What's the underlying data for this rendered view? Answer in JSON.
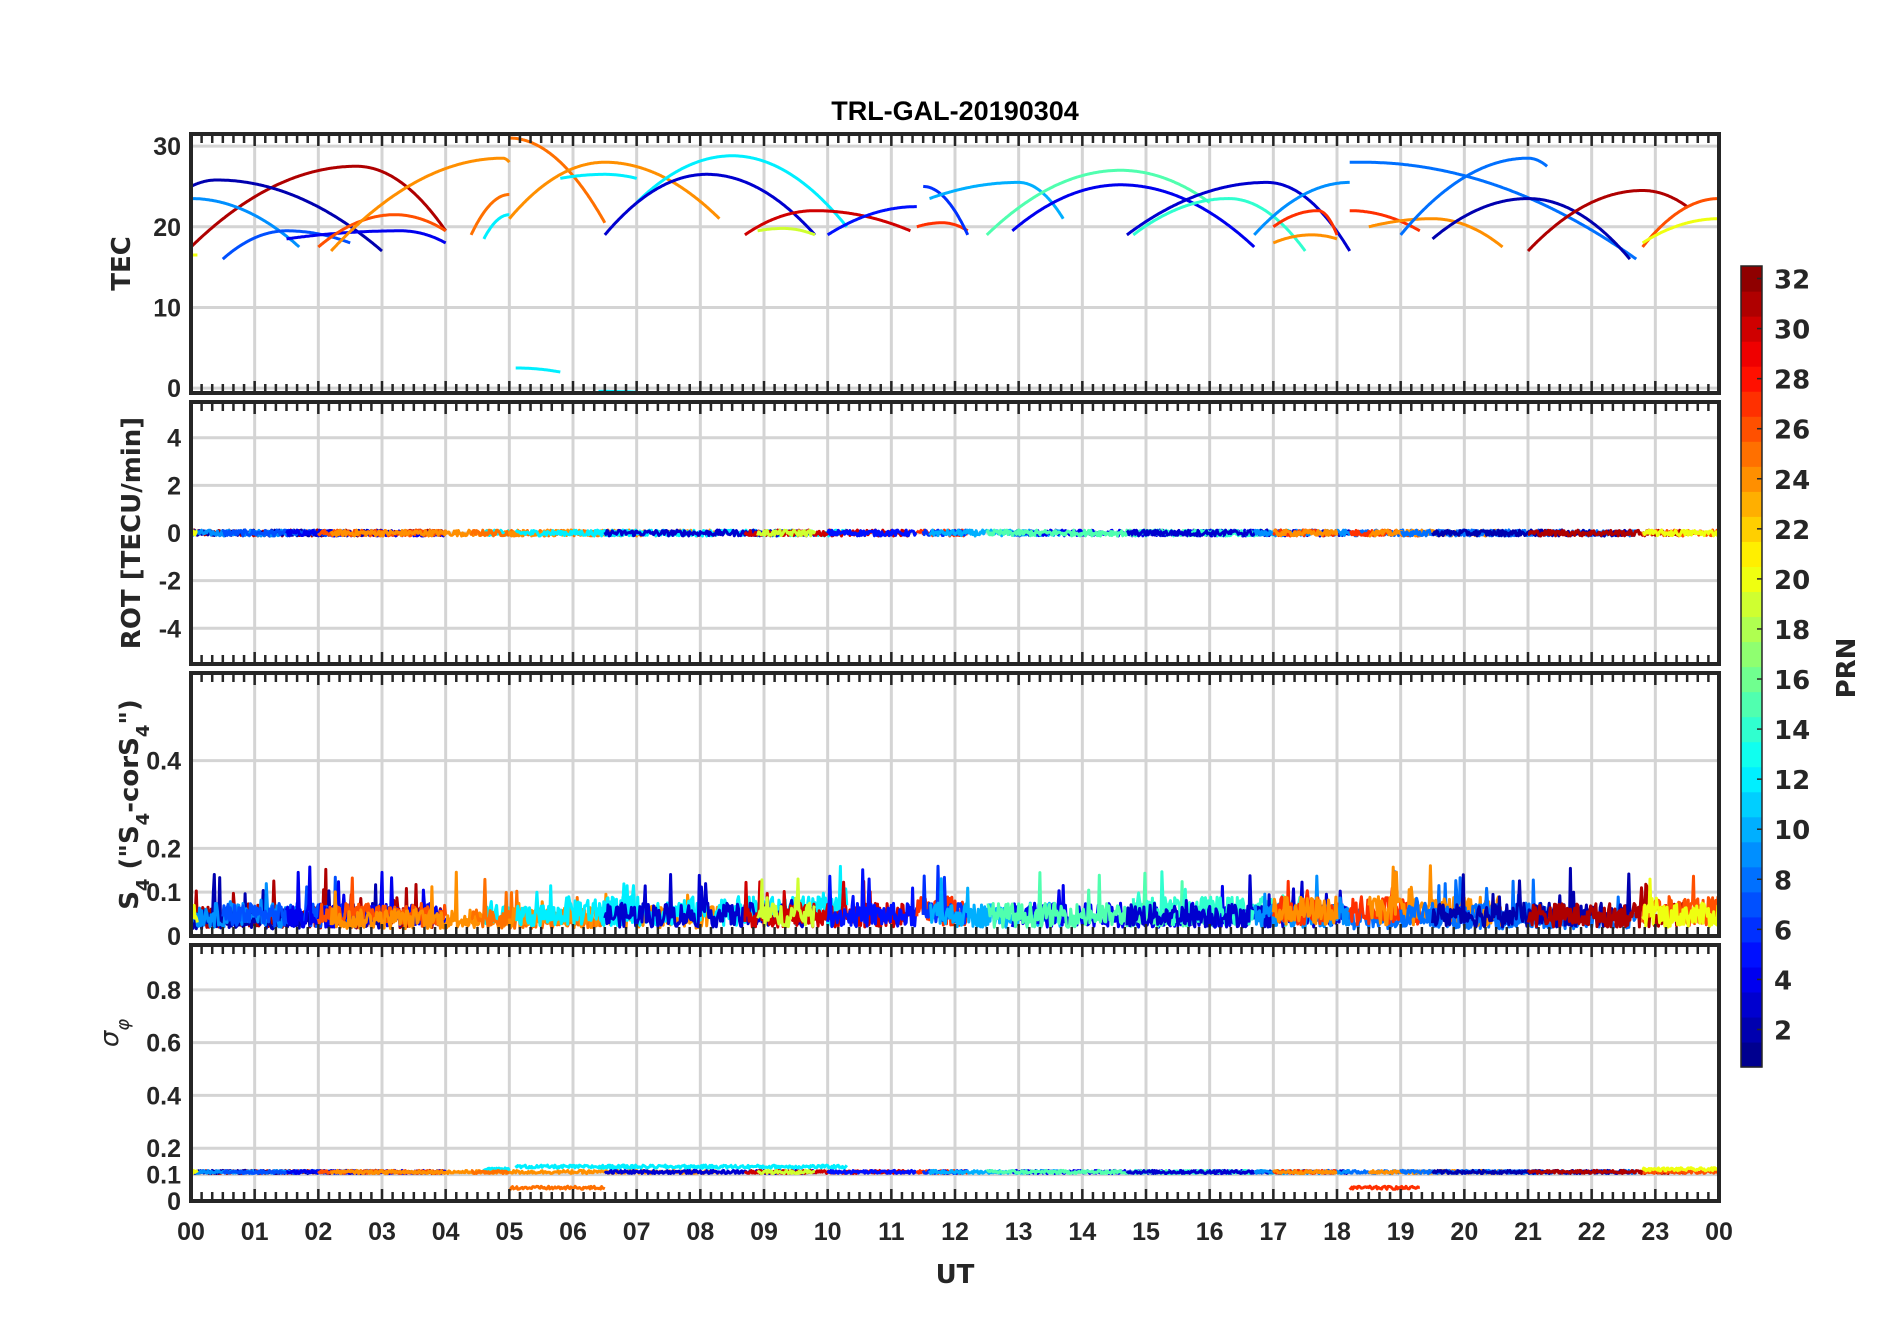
{
  "chart_data": {
    "type": "line",
    "title": "TRL-GAL-20190304",
    "xlabel": "UT",
    "xlim": [
      0,
      24
    ],
    "x_tick_labels": [
      "00",
      "01",
      "02",
      "03",
      "04",
      "05",
      "06",
      "07",
      "08",
      "09",
      "10",
      "11",
      "12",
      "13",
      "14",
      "15",
      "16",
      "17",
      "18",
      "19",
      "20",
      "21",
      "22",
      "23",
      "00"
    ],
    "colorbar": {
      "label": "PRN",
      "range": [
        1,
        32
      ],
      "levels": 32,
      "colormap": "jet",
      "tick_labels": [
        "2",
        "4",
        "6",
        "8",
        "10",
        "12",
        "14",
        "16",
        "18",
        "20",
        "22",
        "24",
        "26",
        "28",
        "30",
        "32"
      ]
    },
    "panels": [
      {
        "id": "tec",
        "ylabel": "TEC",
        "ylim": [
          -0.6,
          31.5
        ],
        "yticks": [
          0,
          10,
          20,
          30
        ],
        "ytick_labels": [
          "0",
          "10",
          "20",
          "30"
        ]
      },
      {
        "id": "rot",
        "ylabel": "ROT [TECU/min]",
        "ylim": [
          -5.5,
          5.5
        ],
        "yticks": [
          -4,
          -2,
          0,
          2,
          4
        ],
        "ytick_labels": [
          "-4",
          "-2",
          "0",
          "2",
          "4"
        ]
      },
      {
        "id": "s4",
        "ylabel_parts": [
          "S",
          "4",
          " (\"S",
          "4",
          "-corS",
          "4",
          "\")"
        ],
        "ylim": [
          0,
          0.6
        ],
        "yticks": [
          0,
          0.1,
          0.2,
          0.4
        ],
        "ytick_labels": [
          "0",
          "0.1",
          "0.2",
          "0.4"
        ]
      },
      {
        "id": "sigma",
        "ylabel_parts": [
          "σ",
          "φ"
        ],
        "ylim": [
          0,
          0.97
        ],
        "yticks": [
          0,
          0.1,
          0.2,
          0.4,
          0.6,
          0.8
        ],
        "ytick_labels": [
          "0",
          "0.1",
          "0.2",
          "0.4",
          "0.6",
          "0.8"
        ]
      }
    ],
    "arcs_fields": [
      "prn",
      "t_start",
      "t_end",
      "tec_start",
      "tec_peak",
      "t_peak",
      "tec_end",
      "s4_level",
      "sigma_level"
    ],
    "arcs": [
      [
        31,
        0.0,
        4.0,
        17.5,
        27.5,
        2.6,
        19.5,
        0.045,
        0.11
      ],
      [
        2,
        0.0,
        3.0,
        25.0,
        25.8,
        0.4,
        17.0,
        0.04,
        0.11
      ],
      [
        9,
        0.0,
        1.7,
        23.5,
        23.5,
        0.0,
        17.5,
        0.05,
        0.11
      ],
      [
        20,
        0.0,
        0.1,
        16.5,
        16.5,
        0.0,
        16.5,
        0.05,
        0.11
      ],
      [
        7,
        0.5,
        2.5,
        16.0,
        19.5,
        1.5,
        18.0,
        0.05,
        0.11
      ],
      [
        4,
        1.5,
        4.0,
        18.5,
        19.5,
        3.3,
        18.0,
        0.05,
        0.11
      ],
      [
        26,
        2.0,
        4.0,
        17.5,
        21.5,
        3.2,
        19.5,
        0.05,
        0.11
      ],
      [
        24,
        2.2,
        5.0,
        17.0,
        28.5,
        4.9,
        28.0,
        0.04,
        0.11
      ],
      [
        12,
        4.6,
        5.0,
        18.5,
        21.5,
        5.0,
        21.5,
        0.05,
        0.12
      ],
      [
        25,
        4.4,
        5.0,
        19.0,
        24.0,
        5.0,
        24.0,
        0.04,
        0.11
      ],
      [
        25,
        5.0,
        6.5,
        31.0,
        31.0,
        5.0,
        20.5,
        0.04,
        0.05
      ],
      [
        24,
        5.0,
        8.3,
        21.0,
        28.0,
        6.5,
        21.0,
        0.045,
        0.11
      ],
      [
        12,
        5.1,
        5.8,
        2.5,
        2.5,
        5.1,
        2.0,
        0.05,
        0.13
      ],
      [
        12,
        5.8,
        7.0,
        26.0,
        26.5,
        6.5,
        26.0,
        0.06,
        0.13
      ],
      [
        12,
        6.4,
        7.0,
        -0.4,
        -0.4,
        6.4,
        -0.5,
        0.06,
        0.13
      ],
      [
        12,
        7.0,
        10.3,
        23.0,
        28.8,
        8.5,
        20.0,
        0.06,
        0.13
      ],
      [
        3,
        6.5,
        9.8,
        19.0,
        26.5,
        8.1,
        19.0,
        0.05,
        0.11
      ],
      [
        30,
        8.7,
        11.3,
        19.0,
        22.0,
        9.8,
        19.5,
        0.05,
        0.11
      ],
      [
        19,
        8.9,
        9.8,
        19.5,
        19.8,
        9.3,
        19.0,
        0.05,
        0.11
      ],
      [
        5,
        10.0,
        11.4,
        19.0,
        22.5,
        11.4,
        22.5,
        0.05,
        0.11
      ],
      [
        27,
        11.4,
        12.2,
        20.0,
        20.5,
        11.8,
        19.5,
        0.06,
        0.11
      ],
      [
        6,
        11.5,
        12.2,
        25.0,
        25.0,
        11.5,
        19.0,
        0.05,
        0.11
      ],
      [
        10,
        11.6,
        13.7,
        23.5,
        25.5,
        13.0,
        21.0,
        0.05,
        0.11
      ],
      [
        4,
        12.9,
        16.7,
        19.5,
        25.2,
        14.6,
        17.5,
        0.05,
        0.11
      ],
      [
        15,
        12.5,
        16.0,
        19.0,
        27.0,
        14.6,
        23.0,
        0.05,
        0.11
      ],
      [
        14,
        14.8,
        17.5,
        19.0,
        23.5,
        16.3,
        17.0,
        0.06,
        0.11
      ],
      [
        3,
        14.7,
        18.2,
        19.0,
        25.5,
        16.9,
        17.0,
        0.05,
        0.11
      ],
      [
        9,
        16.7,
        18.2,
        19.0,
        25.5,
        18.2,
        25.5,
        0.05,
        0.11
      ],
      [
        27,
        17.0,
        18.0,
        20.0,
        22.0,
        17.7,
        19.0,
        0.06,
        0.11
      ],
      [
        24,
        17.0,
        18.0,
        18.0,
        19.0,
        17.6,
        18.5,
        0.06,
        0.11
      ],
      [
        8,
        18.2,
        22.7,
        28.0,
        28.0,
        18.4,
        16.0,
        0.04,
        0.11
      ],
      [
        27,
        18.2,
        19.3,
        22.0,
        22.0,
        18.2,
        19.5,
        0.06,
        0.05
      ],
      [
        24,
        18.5,
        20.6,
        20.0,
        21.0,
        19.5,
        17.5,
        0.06,
        0.11
      ],
      [
        8,
        19.0,
        21.3,
        19.0,
        28.5,
        21.0,
        27.5,
        0.05,
        0.11
      ],
      [
        2,
        19.5,
        22.6,
        18.5,
        23.5,
        21.0,
        16.0,
        0.05,
        0.11
      ],
      [
        31,
        21.0,
        23.5,
        17.0,
        24.5,
        22.8,
        22.5,
        0.05,
        0.11
      ],
      [
        26,
        22.8,
        24.0,
        17.5,
        23.5,
        24.0,
        23.5,
        0.06,
        0.11
      ],
      [
        20,
        22.8,
        24.0,
        18.0,
        21.0,
        24.0,
        21.0,
        0.05,
        0.12
      ]
    ]
  }
}
